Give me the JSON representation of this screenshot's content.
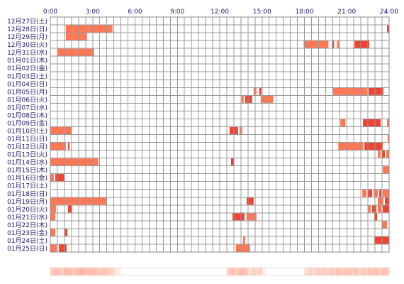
{
  "chart_data": {
    "type": "heatmap",
    "title": "",
    "xlabel": "",
    "ylabel": "",
    "x_unit": "hour",
    "xlim": [
      0,
      24
    ],
    "x_ticks": [
      0,
      3,
      6,
      9,
      12,
      15,
      18,
      21,
      24
    ],
    "x_tick_labels": [
      "0:00",
      "3:00",
      "6:00",
      "9:00",
      "12:00",
      "15:00",
      "18:00",
      "21:00",
      "24:00"
    ],
    "grid": true,
    "colors": {
      "activity_light": "#FF7755",
      "activity_dark": "#EE4433",
      "grid_line": "#999999",
      "frame": "#888888",
      "label_text": "#1A1A66"
    },
    "rows": [
      {
        "date": "12月27日(土)",
        "intervals": []
      },
      {
        "date": "12月28日(日)",
        "intervals": [
          [
            1.1,
            4.4
          ],
          [
            23.85,
            24.0
          ]
        ]
      },
      {
        "date": "12月29日(月)",
        "intervals": [
          [
            1.1,
            2.6
          ]
        ]
      },
      {
        "date": "12月30日(火)",
        "intervals": [
          [
            17.95,
            19.7
          ],
          [
            19.95,
            20.1
          ],
          [
            20.3,
            20.45
          ],
          [
            21.55,
            22.6
          ]
        ]
      },
      {
        "date": "12月31日(水)",
        "intervals": [
          [
            0.5,
            3.1
          ]
        ]
      },
      {
        "date": "01月01日(木)",
        "intervals": []
      },
      {
        "date": "01月02日(金)",
        "intervals": []
      },
      {
        "date": "01月03日(土)",
        "intervals": []
      },
      {
        "date": "01月04日(日)",
        "intervals": []
      },
      {
        "date": "01月05日(月)",
        "intervals": [
          [
            14.4,
            14.6
          ],
          [
            14.8,
            14.95
          ],
          [
            20.0,
            22.45
          ],
          [
            22.55,
            23.6
          ]
        ]
      },
      {
        "date": "01月06日(火)",
        "intervals": [
          [
            13.55,
            13.7
          ],
          [
            13.8,
            14.3
          ],
          [
            14.9,
            15.8
          ]
        ]
      },
      {
        "date": "01月07日(水)",
        "intervals": []
      },
      {
        "date": "01月08日(木)",
        "intervals": []
      },
      {
        "date": "01月09日(金)",
        "intervals": [
          [
            20.55,
            20.9
          ],
          [
            22.15,
            23.4
          ],
          [
            23.85,
            24.0
          ]
        ]
      },
      {
        "date": "01月10日(土)",
        "intervals": [
          [
            0.0,
            1.5
          ],
          [
            12.7,
            13.3
          ],
          [
            13.4,
            13.6
          ]
        ]
      },
      {
        "date": "01月11日(日)",
        "intervals": [
          [
            23.9,
            24.0
          ]
        ]
      },
      {
        "date": "01月12日(月)",
        "intervals": [
          [
            0.0,
            1.1
          ],
          [
            1.25,
            1.35
          ],
          [
            20.4,
            22.15
          ],
          [
            22.25,
            23.55
          ]
        ]
      },
      {
        "date": "01月13日(火)",
        "intervals": [
          [
            23.2,
            23.4
          ],
          [
            23.5,
            23.7
          ],
          [
            23.8,
            24.0
          ]
        ]
      },
      {
        "date": "01月14日(水)",
        "intervals": [
          [
            0.0,
            3.4
          ],
          [
            12.8,
            13.0
          ]
        ]
      },
      {
        "date": "01月15日(木)",
        "intervals": [
          [
            23.55,
            24.0
          ]
        ]
      },
      {
        "date": "01月16日(金)",
        "intervals": [
          [
            0.0,
            0.25
          ],
          [
            0.35,
            1.0
          ]
        ]
      },
      {
        "date": "01月17日(土)",
        "intervals": []
      },
      {
        "date": "01月18日(日)",
        "intervals": [
          [
            22.1,
            22.4
          ],
          [
            22.5,
            22.8
          ],
          [
            22.9,
            23.2
          ],
          [
            23.3,
            23.45
          ],
          [
            23.55,
            24.0
          ]
        ]
      },
      {
        "date": "01月19日(月)",
        "intervals": [
          [
            0.0,
            4.0
          ],
          [
            13.9,
            14.4
          ],
          [
            23.2,
            23.6
          ],
          [
            23.7,
            24.0
          ]
        ]
      },
      {
        "date": "01月20日(火)",
        "intervals": [
          [
            0.0,
            0.4
          ],
          [
            1.25,
            1.55
          ],
          [
            22.5,
            22.7
          ],
          [
            22.8,
            23.1
          ],
          [
            23.2,
            23.45
          ],
          [
            23.55,
            24.0
          ]
        ]
      },
      {
        "date": "01月21日(水)",
        "intervals": [
          [
            0.0,
            0.35
          ],
          [
            12.9,
            13.75
          ],
          [
            13.9,
            14.6
          ],
          [
            22.95,
            23.15
          ]
        ]
      },
      {
        "date": "01月22日(木)",
        "intervals": [
          [
            23.5,
            23.85
          ]
        ]
      },
      {
        "date": "01月23日(金)",
        "intervals": [
          [
            0.0,
            0.35
          ],
          [
            1.0,
            1.2
          ]
        ]
      },
      {
        "date": "01月24日(土)",
        "intervals": [
          [
            13.65,
            13.8
          ],
          [
            22.95,
            24.0
          ]
        ]
      },
      {
        "date": "01月25日(日)",
        "intervals": [
          [
            0.0,
            0.45
          ],
          [
            0.6,
            1.15
          ],
          [
            13.15,
            14.15
          ]
        ]
      }
    ],
    "summary_strip": {
      "bins_per_hour": 4,
      "levels": [
        0.4,
        0.5,
        0.45,
        0.35,
        0.55,
        0.5,
        0.4,
        0.45,
        0.6,
        0.55,
        0.45,
        0.5,
        0.5,
        0.4,
        0.4,
        0.45,
        0.35,
        0.3,
        0.1,
        0.05,
        0.0,
        0.0,
        0.0,
        0.0,
        0.0,
        0.0,
        0.0,
        0.0,
        0.0,
        0.0,
        0.0,
        0.0,
        0.0,
        0.0,
        0.0,
        0.0,
        0.0,
        0.0,
        0.0,
        0.0,
        0.0,
        0.0,
        0.0,
        0.0,
        0.0,
        0.0,
        0.0,
        0.0,
        0.0,
        0.0,
        0.35,
        0.5,
        0.35,
        0.45,
        0.55,
        0.4,
        0.15,
        0.35,
        0.25,
        0.3,
        0.05,
        0.0,
        0.0,
        0.0,
        0.0,
        0.0,
        0.0,
        0.0,
        0.0,
        0.0,
        0.0,
        0.0,
        0.25,
        0.3,
        0.25,
        0.35,
        0.3,
        0.35,
        0.3,
        0.4,
        0.35,
        0.45,
        0.35,
        0.4,
        0.4,
        0.35,
        0.45,
        0.3,
        0.4,
        0.35,
        0.45,
        0.4,
        0.5,
        0.35,
        0.45,
        0.4
      ]
    }
  }
}
